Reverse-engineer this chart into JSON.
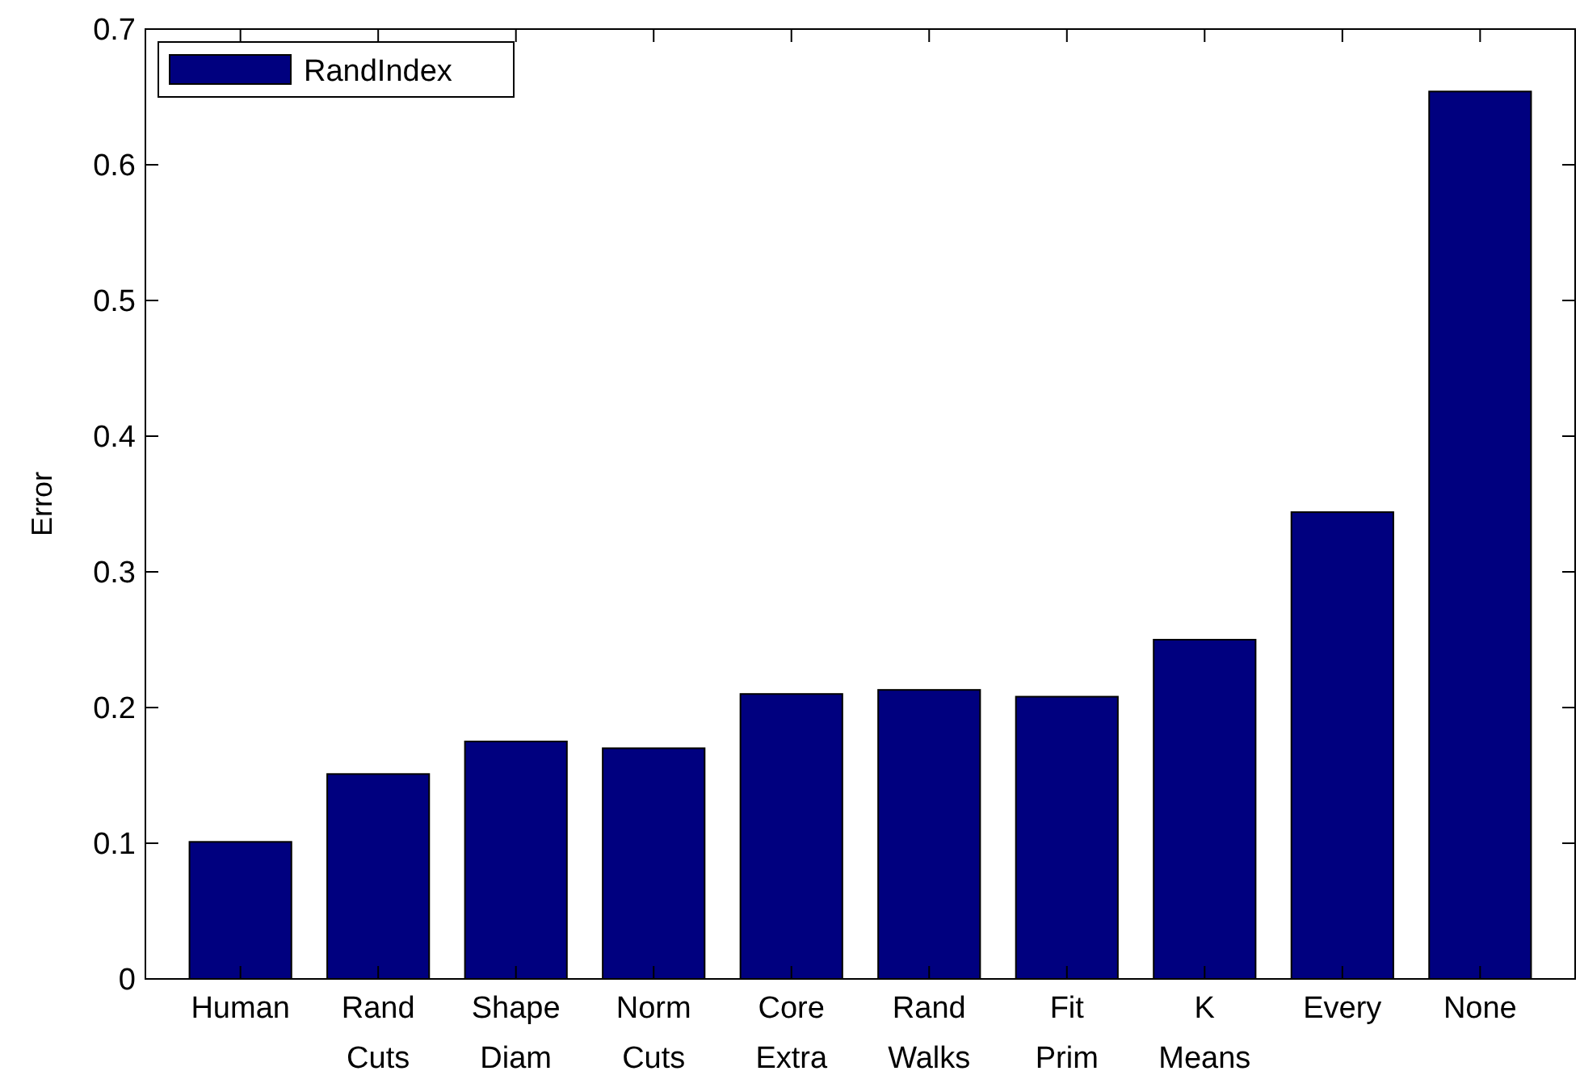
{
  "chart_data": {
    "type": "bar",
    "ylabel": "Error",
    "categories": [
      "Human",
      "Rand Cuts",
      "Shape Diam",
      "Norm Cuts",
      "Core Extra",
      "Rand Walks",
      "Fit Prim",
      "K Means",
      "Every",
      "None"
    ],
    "series": [
      {
        "name": "RandIndex",
        "color": "#00007f",
        "values": [
          0.101,
          0.151,
          0.175,
          0.17,
          0.21,
          0.213,
          0.208,
          0.25,
          0.344,
          0.654
        ]
      }
    ],
    "ylim": [
      0,
      0.7
    ],
    "yticks": [
      0,
      0.1,
      0.2,
      0.3,
      0.4,
      0.5,
      0.6,
      0.7
    ],
    "grid": false,
    "legend": "top left"
  }
}
